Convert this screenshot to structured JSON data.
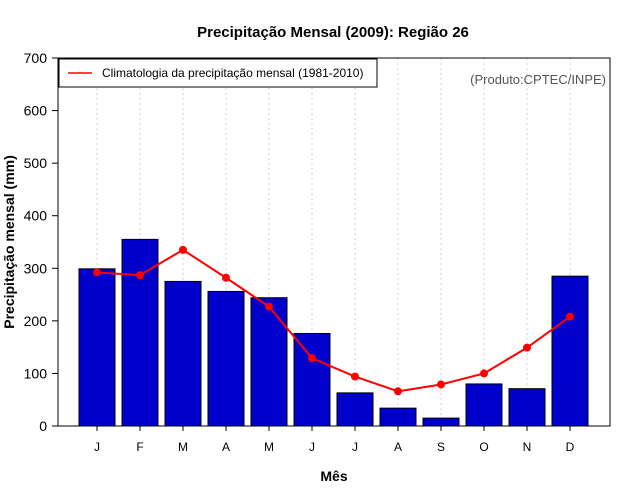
{
  "chart_data": {
    "type": "bar",
    "title": "Precipitação Mensal (2009): Região 26",
    "xlabel": "Mês",
    "ylabel": "Precipitação mensal (mm)",
    "ylim": [
      0,
      700
    ],
    "yticks": [
      0,
      100,
      200,
      300,
      400,
      500,
      600,
      700
    ],
    "categories": [
      "J",
      "F",
      "M",
      "A",
      "M",
      "J",
      "J",
      "A",
      "S",
      "O",
      "N",
      "D"
    ],
    "series": [
      {
        "name": "Precipitação mensal (2009)",
        "kind": "bar",
        "color": "#0000CC",
        "values": [
          299,
          355,
          275,
          256,
          244,
          176,
          63,
          34,
          15,
          80,
          71,
          285
        ]
      },
      {
        "name": "Climatologia da precipitação mensal (1981-2010)",
        "kind": "line",
        "color": "#FF0000",
        "values": [
          292,
          287,
          335,
          282,
          227,
          129,
          94,
          66,
          79,
          100,
          149,
          208
        ]
      }
    ],
    "legend": {
      "label": "Climatologia da precipitação mensal (1981-2010)",
      "position": "top-left"
    },
    "annotation": "(Produto:CPTEC/INPE)",
    "grid": "vertical-dotted"
  },
  "colors": {
    "bar": "#0000CC",
    "line": "#FF0000",
    "grid": "#D3D3D3",
    "annotation": "#555555"
  }
}
